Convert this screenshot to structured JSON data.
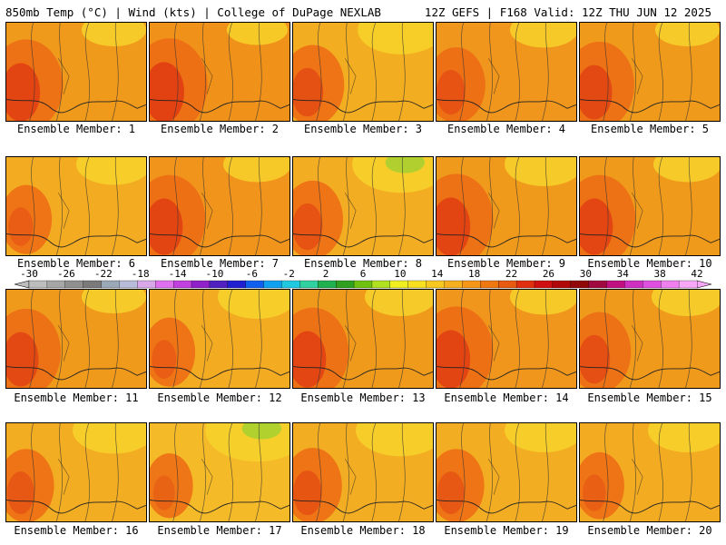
{
  "header": {
    "left": "850mb Temp (°C) | Wind (kts) | College of DuPage NEXLAB",
    "right": "12Z GEFS | F168 Valid: 12Z THU JUN 12 2025"
  },
  "caption_prefix": "Ensemble Member:",
  "panels": [
    {
      "member": "1",
      "bg": "#f09a1c",
      "hot": 0.85,
      "cool": 0.15
    },
    {
      "member": "2",
      "bg": "#f0921a",
      "hot": 0.9,
      "cool": 0.1
    },
    {
      "member": "3",
      "bg": "#f3ad20",
      "hot": 0.6,
      "cool": 0.45
    },
    {
      "member": "4",
      "bg": "#f0961c",
      "hot": 0.5,
      "cool": 0.2
    },
    {
      "member": "5",
      "bg": "#f09a1c",
      "hot": 0.75,
      "cool": 0.15
    },
    {
      "member": "6",
      "bg": "#f3ac22",
      "hot": 0.35,
      "cool": 0.3
    },
    {
      "member": "7",
      "bg": "#f0941b",
      "hot": 0.8,
      "cool": 0.2
    },
    {
      "member": "8",
      "bg": "#f3ad22",
      "hot": 0.55,
      "cool": 0.6
    },
    {
      "member": "9",
      "bg": "#f09a1c",
      "hot": 0.85,
      "cool": 0.35
    },
    {
      "member": "10",
      "bg": "#f09a1c",
      "hot": 0.8,
      "cool": 0.2
    },
    {
      "member": "11",
      "bg": "#f09a1c",
      "hot": 0.75,
      "cool": 0.15
    },
    {
      "member": "12",
      "bg": "#f3ab22",
      "hot": 0.35,
      "cool": 0.35
    },
    {
      "member": "13",
      "bg": "#f09a1c",
      "hot": 0.8,
      "cool": 0.25
    },
    {
      "member": "14",
      "bg": "#f0961c",
      "hot": 0.85,
      "cool": 0.2
    },
    {
      "member": "15",
      "bg": "#f09a1c",
      "hot": 0.6,
      "cool": 0.25
    },
    {
      "member": "16",
      "bg": "#f3ad22",
      "hot": 0.45,
      "cool": 0.4
    },
    {
      "member": "17",
      "bg": "#f5ba28",
      "hot": 0.25,
      "cool": 0.7
    },
    {
      "member": "18",
      "bg": "#f3ad22",
      "hot": 0.5,
      "cool": 0.5
    },
    {
      "member": "19",
      "bg": "#f3ad22",
      "hot": 0.45,
      "cool": 0.35
    },
    {
      "member": "20",
      "bg": "#f3ab22",
      "hot": 0.3,
      "cool": 0.35
    }
  ],
  "colorbar": {
    "labels": [
      "-30",
      "-26",
      "-22",
      "-18",
      "-14",
      "-10",
      "-6",
      "-2",
      "2",
      "6",
      "10",
      "14",
      "18",
      "22",
      "26",
      "30",
      "34",
      "38",
      "42"
    ],
    "colors": [
      "#bdbdbd",
      "#a6a6a6",
      "#8f8f8f",
      "#7a7a7a",
      "#9aa8b8",
      "#b8bcd8",
      "#d8a8e8",
      "#e070f0",
      "#c040e0",
      "#9020c8",
      "#5020c0",
      "#2020d0",
      "#1060f0",
      "#10a0f0",
      "#20c8e0",
      "#30d0a0",
      "#20b050",
      "#30a020",
      "#70c010",
      "#b0e020",
      "#f0f020",
      "#f8e020",
      "#f8c820",
      "#f5b020",
      "#f59618",
      "#f07810",
      "#e85a10",
      "#e03010",
      "#d01010",
      "#b00808",
      "#900808",
      "#a00840",
      "#c01080",
      "#d030c0",
      "#e050e0",
      "#f080f0",
      "#f8a8f8"
    ]
  }
}
